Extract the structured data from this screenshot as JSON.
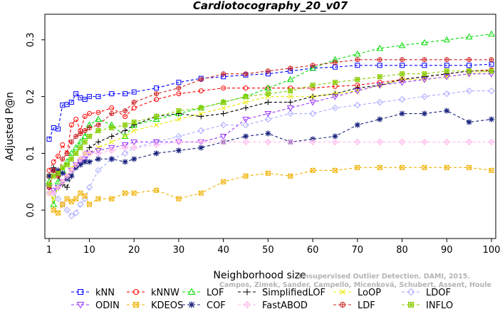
{
  "chart_data": {
    "type": "line",
    "title": "Cardiotocography_20_v07",
    "xlabel": "Neighborhood size",
    "ylabel": "Adjusted P@n",
    "xlim": [
      1,
      100
    ],
    "ylim": [
      -0.05,
      0.345
    ],
    "xticks": [
      1,
      10,
      20,
      30,
      40,
      50,
      60,
      70,
      80,
      90,
      100
    ],
    "xtick_labels": [
      "1",
      "10",
      "20",
      "30",
      "40",
      "50",
      "60",
      "70",
      "80",
      "90",
      "100"
    ],
    "yticks": [
      0.0,
      0.1,
      0.2,
      0.3
    ],
    "ytick_labels": [
      "0.0",
      "0.1",
      "0.2",
      "0.3"
    ],
    "grid": false,
    "legend_position": "bottom",
    "x_knots": [
      1,
      2,
      3,
      4,
      5,
      6,
      7,
      8,
      9,
      10,
      12,
      15,
      18,
      20,
      25,
      30,
      35,
      40,
      45,
      50,
      55,
      60,
      65,
      70,
      75,
      80,
      85,
      90,
      95,
      100
    ],
    "series": [
      {
        "name": "kNN",
        "color": "#0000ff",
        "marker": "square",
        "dash": "4,3",
        "values": [
          0.125,
          0.145,
          0.143,
          0.185,
          0.186,
          0.19,
          0.205,
          0.198,
          0.195,
          0.2,
          0.2,
          0.205,
          0.205,
          0.208,
          0.215,
          0.225,
          0.232,
          0.235,
          0.238,
          0.24,
          0.245,
          0.25,
          0.252,
          0.255,
          0.255,
          0.255,
          0.255,
          0.255,
          0.255,
          0.257
        ]
      },
      {
        "name": "kNNW",
        "color": "#ff0000",
        "marker": "circle",
        "dash": "4,3",
        "values": [
          0.07,
          0.085,
          0.095,
          0.115,
          0.1,
          0.15,
          0.16,
          0.14,
          0.165,
          0.17,
          0.172,
          0.18,
          0.165,
          0.18,
          0.195,
          0.205,
          0.21,
          0.215,
          0.215,
          0.215,
          0.215,
          0.215,
          0.218,
          0.22,
          0.225,
          0.23,
          0.235,
          0.24,
          0.245,
          0.247
        ]
      },
      {
        "name": "LOF",
        "color": "#00dd00",
        "marker": "triangle",
        "dash": "4,3",
        "values": [
          0.05,
          0.01,
          0.05,
          0.07,
          0.085,
          0.1,
          0.11,
          0.12,
          0.13,
          0.15,
          0.16,
          0.15,
          0.13,
          0.15,
          0.16,
          0.17,
          0.18,
          0.19,
          0.2,
          0.215,
          0.23,
          0.25,
          0.265,
          0.275,
          0.285,
          0.29,
          0.295,
          0.3,
          0.305,
          0.31
        ]
      },
      {
        "name": "SimplifiedLOF",
        "color": "#000000",
        "marker": "plus",
        "dash": "4,3",
        "values": [
          0.06,
          0.075,
          0.06,
          0.045,
          0.04,
          0.06,
          0.08,
          0.09,
          0.1,
          0.11,
          0.12,
          0.13,
          0.14,
          0.15,
          0.165,
          0.17,
          0.165,
          0.17,
          0.18,
          0.19,
          0.19,
          0.2,
          0.205,
          0.215,
          0.22,
          0.23,
          0.235,
          0.24,
          0.245,
          0.245
        ]
      },
      {
        "name": "LoOP",
        "color": "#e8e800",
        "marker": "x",
        "dash": "4,3",
        "values": [
          0.03,
          0.02,
          0.04,
          0.05,
          0.06,
          0.075,
          0.08,
          0.09,
          0.1,
          0.1,
          0.11,
          0.12,
          0.13,
          0.14,
          0.15,
          0.16,
          0.17,
          0.18,
          0.19,
          0.2,
          0.2,
          0.2,
          0.205,
          0.21,
          0.22,
          0.23,
          0.23,
          0.235,
          0.24,
          0.245
        ]
      },
      {
        "name": "LDOF",
        "color": "#aaaaff",
        "marker": "diamond",
        "dash": "4,3",
        "values": [
          0.03,
          0.03,
          0.02,
          0.01,
          0.0,
          -0.01,
          -0.005,
          0.01,
          0.02,
          0.04,
          0.07,
          0.09,
          0.1,
          0.11,
          0.12,
          0.13,
          0.14,
          0.15,
          0.15,
          0.16,
          0.17,
          0.17,
          0.18,
          0.185,
          0.19,
          0.195,
          0.2,
          0.205,
          0.21,
          0.21
        ]
      },
      {
        "name": "ODIN",
        "color": "#9933ff",
        "marker": "invtriangle",
        "dash": "4,3",
        "values": [
          0.04,
          0.035,
          0.04,
          0.05,
          0.06,
          0.07,
          0.08,
          0.085,
          0.09,
          0.1,
          0.105,
          0.11,
          0.115,
          0.12,
          0.12,
          0.12,
          0.12,
          0.13,
          0.16,
          0.17,
          0.18,
          0.19,
          0.2,
          0.21,
          0.22,
          0.225,
          0.23,
          0.235,
          0.24,
          0.24
        ]
      },
      {
        "name": "KDEOS",
        "color": "#f0b000",
        "marker": "squarex",
        "dash": "4,3",
        "values": [
          0.06,
          0.0,
          -0.005,
          0.01,
          0.02,
          0.015,
          0.02,
          0.03,
          0.025,
          0.01,
          0.02,
          0.02,
          0.03,
          0.03,
          0.035,
          0.02,
          0.03,
          0.05,
          0.06,
          0.065,
          0.06,
          0.07,
          0.07,
          0.075,
          0.075,
          0.075,
          0.075,
          0.075,
          0.075,
          0.07
        ]
      },
      {
        "name": "COF",
        "color": "#1a237e",
        "marker": "star",
        "dash": "4,3",
        "values": [
          0.06,
          0.07,
          0.07,
          0.065,
          0.055,
          0.06,
          0.075,
          0.08,
          0.085,
          0.085,
          0.09,
          0.09,
          0.085,
          0.09,
          0.1,
          0.105,
          0.11,
          0.12,
          0.13,
          0.135,
          0.12,
          0.125,
          0.13,
          0.15,
          0.16,
          0.17,
          0.17,
          0.175,
          0.155,
          0.16
        ]
      },
      {
        "name": "FastABOD",
        "color": "#ffbbee",
        "marker": "diamondplus",
        "dash": "4,3",
        "values": [
          0.03,
          0.03,
          0.04,
          0.05,
          0.06,
          0.07,
          0.08,
          0.09,
          0.1,
          0.1,
          0.1,
          0.105,
          0.11,
          0.11,
          0.115,
          0.12,
          0.12,
          0.12,
          0.12,
          0.12,
          0.12,
          0.12,
          0.12,
          0.12,
          0.12,
          0.12,
          0.12,
          0.12,
          0.12,
          0.12
        ]
      },
      {
        "name": "LDF",
        "color": "#cc2222",
        "marker": "circleplus",
        "dash": "4,3",
        "values": [
          0.04,
          0.07,
          0.06,
          0.09,
          0.1,
          0.12,
          0.13,
          0.135,
          0.14,
          0.145,
          0.15,
          0.17,
          0.175,
          0.19,
          0.205,
          0.215,
          0.23,
          0.24,
          0.24,
          0.245,
          0.25,
          0.255,
          0.26,
          0.265,
          0.265,
          0.265,
          0.265,
          0.265,
          0.265,
          0.265
        ]
      },
      {
        "name": "INFLO",
        "color": "#88cc00",
        "marker": "squarestar",
        "dash": "4,3",
        "values": [
          0.045,
          0.06,
          0.065,
          0.075,
          0.08,
          0.09,
          0.1,
          0.11,
          0.12,
          0.13,
          0.14,
          0.145,
          0.15,
          0.155,
          0.165,
          0.175,
          0.18,
          0.19,
          0.2,
          0.205,
          0.21,
          0.22,
          0.225,
          0.23,
          0.235,
          0.24,
          0.24,
          0.245,
          0.245,
          0.245
        ]
      }
    ]
  },
  "watermark": {
    "line1": "Unsupervised Outlier Detection. DAMI, 2015.",
    "line2": "Campos, Zimek, Sander, Campello, Micenková, Schubert, Assent, Houle"
  }
}
